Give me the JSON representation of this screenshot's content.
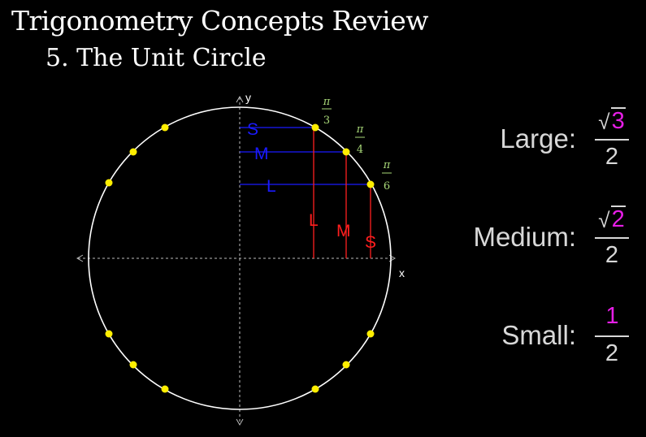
{
  "title": "Trigonometry Concepts Review",
  "subtitle": "5. The Unit Circle",
  "axes": {
    "x_label": "x",
    "y_label": "y"
  },
  "angles": [
    {
      "name": "pi-over-3",
      "num": "π",
      "den": "3"
    },
    {
      "name": "pi-over-4",
      "num": "π",
      "den": "4"
    },
    {
      "name": "pi-over-6",
      "num": "π",
      "den": "6"
    }
  ],
  "segment_labels": {
    "horizontal": [
      "S",
      "M",
      "L"
    ],
    "vertical": [
      "L",
      "M",
      "S"
    ]
  },
  "values": [
    {
      "label": "Large:",
      "radical": "√",
      "numerator": "3",
      "denominator": "2"
    },
    {
      "label": "Medium:",
      "radical": "√",
      "numerator": "2",
      "denominator": "2"
    },
    {
      "label": "Small:",
      "radical": "",
      "numerator": "1",
      "denominator": "2"
    }
  ],
  "colors": {
    "circle": "#ffffff",
    "points": "#ffee00",
    "horizontal": "#1a1aff",
    "vertical": "#ff1e1e",
    "angle_labels": "#a8d878",
    "numerator": "#e61ee6"
  }
}
